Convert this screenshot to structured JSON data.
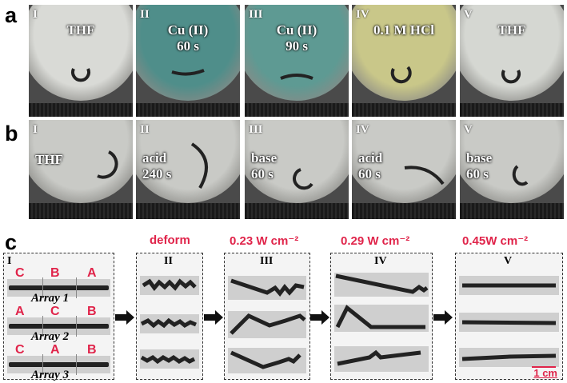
{
  "row_a": {
    "label": "a",
    "panels": [
      {
        "roman": "I",
        "text": [
          "THF"
        ],
        "tint": "#d9dad6"
      },
      {
        "roman": "II",
        "text": [
          "Cu (II)",
          "60 s"
        ],
        "tint": "#4f8e8a"
      },
      {
        "roman": "III",
        "text": [
          "Cu (II)",
          "90 s"
        ],
        "tint": "#5e9a93"
      },
      {
        "roman": "IV",
        "text": [
          "0.1 M HCl"
        ],
        "tint": "#c9c789"
      },
      {
        "roman": "V",
        "text": [
          "THF"
        ],
        "tint": "#d5d7d2"
      }
    ]
  },
  "row_b": {
    "label": "b",
    "panels": [
      {
        "roman": "I",
        "text": [
          "THF"
        ]
      },
      {
        "roman": "II",
        "text": [
          "acid",
          "240 s"
        ]
      },
      {
        "roman": "III",
        "text": [
          "base",
          "60 s"
        ]
      },
      {
        "roman": "IV",
        "text": [
          "acid",
          "60 s"
        ]
      },
      {
        "roman": "V",
        "text": [
          "base",
          "60 s"
        ]
      }
    ]
  },
  "row_c": {
    "label": "c",
    "headers": [
      "deform",
      "0.23 W cm⁻²",
      "0.29 W cm⁻²",
      "0.45W cm⁻²"
    ],
    "romans": [
      "I",
      "II",
      "III",
      "IV",
      "V"
    ],
    "arrays": [
      {
        "name": "Array 1",
        "letters": [
          "C",
          "B",
          "A"
        ]
      },
      {
        "name": "Array 2",
        "letters": [
          "A",
          "C",
          "B"
        ]
      },
      {
        "name": "Array 3",
        "letters": [
          "C",
          "A",
          "B"
        ]
      }
    ],
    "scale_bar": "1 cm"
  },
  "colors": {
    "accent_red": "#e0244a"
  }
}
